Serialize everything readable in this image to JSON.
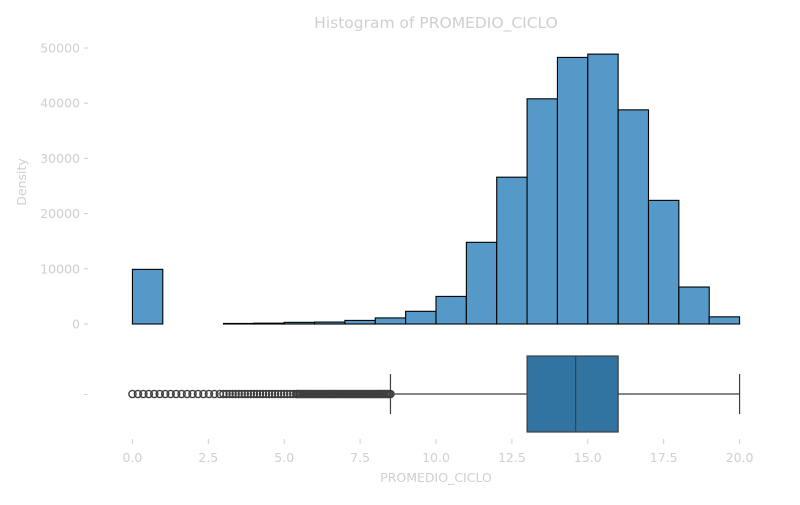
{
  "chart_data": [
    {
      "type": "bar",
      "subtype": "histogram",
      "title": "Histogram of PROMEDIO_CICLO",
      "xlabel": "",
      "ylabel": "Density",
      "ylim": [
        0,
        52000
      ],
      "yticks": [
        0,
        10000,
        20000,
        30000,
        40000,
        50000
      ],
      "ytick_labels": [
        "0",
        "10000",
        "20000",
        "30000",
        "40000",
        "50000"
      ],
      "bin_edges": [
        0,
        1,
        2,
        3,
        4,
        5,
        6,
        7,
        8,
        9,
        10,
        11,
        12,
        13,
        14,
        15,
        16,
        17,
        18,
        19,
        20
      ],
      "values": [
        9900,
        0,
        0,
        100,
        150,
        300,
        350,
        650,
        1100,
        2300,
        5000,
        14800,
        26600,
        40800,
        48300,
        48900,
        38800,
        22400,
        6700,
        1300
      ],
      "bar_color": "#5499c7",
      "edge_color": "#000000",
      "grid": false
    },
    {
      "type": "box",
      "xlabel": "PROMEDIO_CICLO",
      "xlim": [
        -1.2,
        21.2
      ],
      "xticks": [
        0.0,
        2.5,
        5.0,
        7.5,
        10.0,
        12.5,
        15.0,
        17.5,
        20.0
      ],
      "xtick_labels": [
        "0.0",
        "2.5",
        "5.0",
        "7.5",
        "10.0",
        "12.5",
        "15.0",
        "17.5",
        "20.0"
      ],
      "ytick_labels": [
        "-"
      ],
      "whisker_low": 8.5,
      "q1": 13.0,
      "median": 14.6,
      "q3": 16.0,
      "whisker_high": 20.0,
      "outlier_range": [
        0.0,
        8.5
      ],
      "box_color": "#3274a1",
      "grid": false
    }
  ]
}
